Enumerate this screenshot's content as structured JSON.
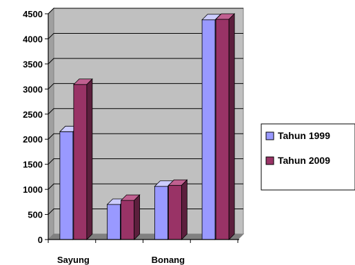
{
  "chart_data": {
    "type": "bar",
    "categories": [
      "Sayung",
      "",
      "Bonang",
      ""
    ],
    "series": [
      {
        "name": "Tahun 1999",
        "values": [
          2150,
          700,
          1060,
          4380
        ]
      },
      {
        "name": "Tahun 2009",
        "values": [
          3090,
          780,
          1080,
          4390
        ]
      }
    ],
    "ylim": [
      0,
      4500
    ],
    "yticks": [
      0,
      500,
      1000,
      1500,
      2000,
      2500,
      3000,
      3500,
      4000,
      4500
    ],
    "grid": true,
    "legend_position": "right",
    "colors": {
      "series_1999_front": "#9999ff",
      "series_1999_top": "#ccccff",
      "series_1999_side": "#6666b3",
      "series_2009_front": "#993366",
      "series_2009_top": "#c06090",
      "series_2009_side": "#5c1f3d",
      "plot_back": "#c0c0c0",
      "plot_side": "#a0a0a0",
      "plot_floor": "#808080",
      "gridline": "#000000"
    }
  }
}
